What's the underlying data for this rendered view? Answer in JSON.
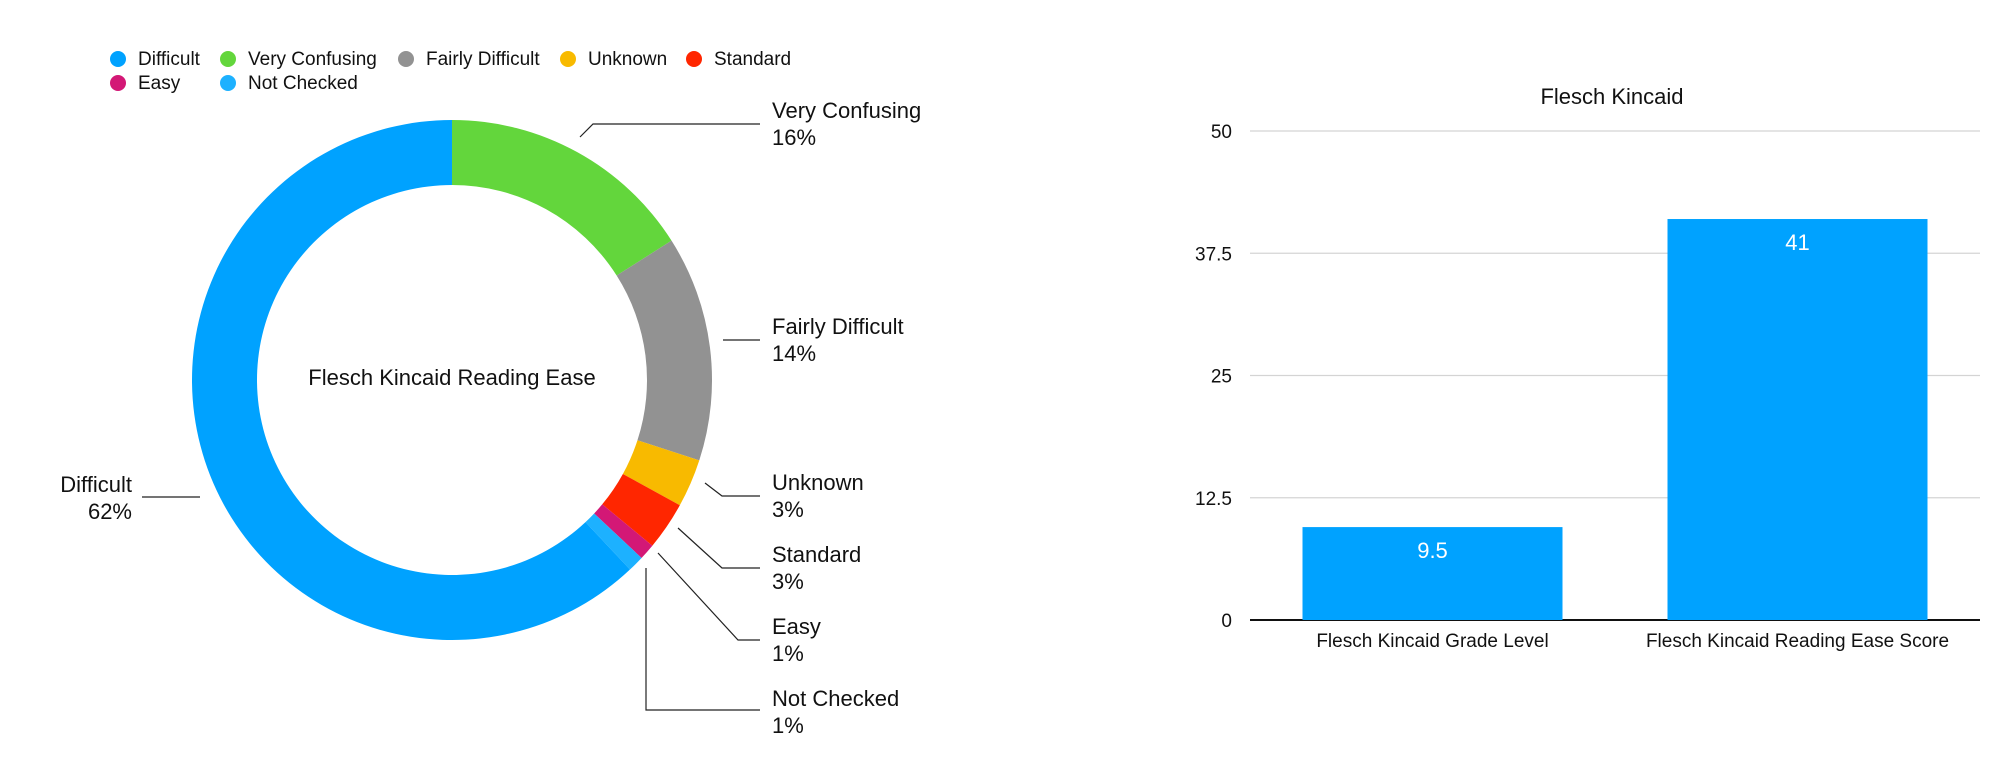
{
  "chart_data": [
    {
      "type": "pie",
      "variant": "donut",
      "center_label": "Flesch Kincaid Reading Ease",
      "legend_position": "top-left",
      "slices": [
        {
          "name": "Very Confusing",
          "value": 16,
          "label": "16%",
          "color": "#63d63c"
        },
        {
          "name": "Fairly Difficult",
          "value": 14,
          "label": "14%",
          "color": "#929292"
        },
        {
          "name": "Unknown",
          "value": 3,
          "label": "3%",
          "color": "#f8ba00"
        },
        {
          "name": "Standard",
          "value": 3,
          "label": "3%",
          "color": "#ff2600"
        },
        {
          "name": "Easy",
          "value": 1,
          "label": "1%",
          "color": "#d31876"
        },
        {
          "name": "Not Checked",
          "value": 1,
          "label": "1%",
          "color": "#1db1ff"
        },
        {
          "name": "Difficult",
          "value": 62,
          "label": "62%",
          "color": "#00a2ff"
        }
      ],
      "legend": [
        {
          "name": "Difficult",
          "color": "#00a2ff"
        },
        {
          "name": "Very Confusing",
          "color": "#63d63c"
        },
        {
          "name": "Fairly Difficult",
          "color": "#929292"
        },
        {
          "name": "Unknown",
          "color": "#f8ba00"
        },
        {
          "name": "Standard",
          "color": "#ff2600"
        },
        {
          "name": "Easy",
          "color": "#d31876"
        },
        {
          "name": "Not Checked",
          "color": "#1db1ff"
        }
      ]
    },
    {
      "type": "bar",
      "title": "Flesch Kincaid",
      "categories": [
        "Flesch Kincaid Grade Level",
        "Flesch Kincaid Reading Ease Score"
      ],
      "values": [
        9.5,
        41
      ],
      "value_labels": [
        "9.5",
        "41"
      ],
      "color": "#00a2ff",
      "ylim": [
        0,
        50
      ],
      "yticks": [
        0,
        12.5,
        25,
        37.5,
        50
      ],
      "ytick_labels": [
        "0",
        "12.5",
        "25",
        "37.5",
        "50"
      ],
      "grid": true,
      "xlabel": "",
      "ylabel": ""
    }
  ]
}
